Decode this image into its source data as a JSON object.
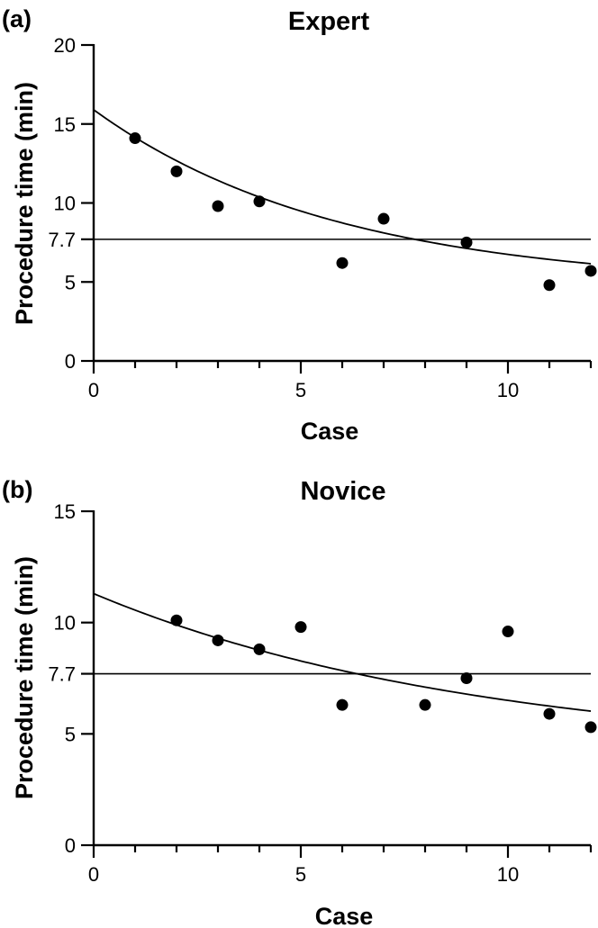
{
  "chart_data": [
    {
      "panel_label": "(a)",
      "type": "scatter",
      "title": "Expert",
      "xlabel": "Case",
      "ylabel": "Procedure time (min)",
      "xlim": [
        0,
        12
      ],
      "ylim": [
        0,
        20
      ],
      "x_ticks": [
        0,
        5,
        10
      ],
      "y_ticks": [
        0,
        5,
        10,
        15,
        20
      ],
      "reference_line": {
        "y": 7.7,
        "label": "7.7"
      },
      "fit_curve": {
        "model": "exponential decay",
        "params": {
          "a": 4.7,
          "b": 11.2,
          "k": 0.17
        }
      },
      "points": [
        {
          "x": 1,
          "y": 14.1
        },
        {
          "x": 2,
          "y": 12.0
        },
        {
          "x": 3,
          "y": 9.8
        },
        {
          "x": 4,
          "y": 10.1
        },
        {
          "x": 6,
          "y": 6.2
        },
        {
          "x": 7,
          "y": 9.0
        },
        {
          "x": 9,
          "y": 7.5
        },
        {
          "x": 11,
          "y": 4.8
        },
        {
          "x": 12,
          "y": 5.7
        }
      ]
    },
    {
      "panel_label": "(b)",
      "type": "scatter",
      "title": "Novice",
      "xlabel": "Case",
      "ylabel": "Procedure time (min)",
      "xlim": [
        0,
        12
      ],
      "ylim": [
        0,
        15
      ],
      "x_ticks": [
        0,
        5,
        10
      ],
      "y_ticks": [
        0,
        5,
        10,
        15
      ],
      "reference_line": {
        "y": 7.7,
        "label": "7.7"
      },
      "fit_curve": {
        "model": "exponential decay",
        "params": {
          "a": 4.0,
          "b": 7.3,
          "k": 0.107
        }
      },
      "points": [
        {
          "x": 2,
          "y": 10.1
        },
        {
          "x": 3,
          "y": 9.2
        },
        {
          "x": 4,
          "y": 8.8
        },
        {
          "x": 5,
          "y": 9.8
        },
        {
          "x": 6,
          "y": 6.3
        },
        {
          "x": 8,
          "y": 6.3
        },
        {
          "x": 9,
          "y": 7.5
        },
        {
          "x": 10,
          "y": 9.6
        },
        {
          "x": 11,
          "y": 5.9
        },
        {
          "x": 12,
          "y": 5.3
        }
      ]
    }
  ]
}
